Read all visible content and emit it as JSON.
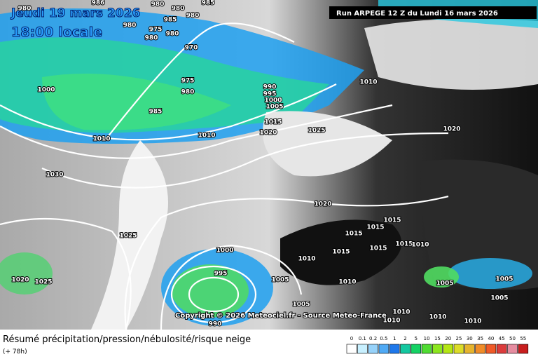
{
  "header": {
    "date": "Jeudi 19 mars 2026",
    "time": "18:00 locale",
    "run": "Run ARPEGE 12 Z du Lundi 16 mars 2026",
    "copyright": "Copyright © 2026 Meteociel.fr - Source Meteo-France"
  },
  "footer": {
    "title": "Résumé précipitation/pression/nébulosité/risque neige",
    "lead": "(+ 78h)"
  },
  "isobar_labels": [
    "980",
    "986",
    "980",
    "980",
    "985",
    "980",
    "985",
    "980",
    "975",
    "980",
    "980",
    "970",
    "1000",
    "975",
    "980",
    "985",
    "990",
    "995",
    "1000",
    "1005",
    "1010",
    "1010",
    "1015",
    "1020",
    "1025",
    "1010",
    "1020",
    "1030",
    "1020",
    "1025",
    "1015",
    "1015",
    "1015",
    "1015",
    "1015",
    "1015",
    "1010",
    "1010",
    "1000",
    "995",
    "1005",
    "1020",
    "1025",
    "1010",
    "1005",
    "1005",
    "1005",
    "1010",
    "1010",
    "990",
    "1010",
    "1010",
    "1005"
  ],
  "legend": [
    {
      "label": "0",
      "color": "#ffffff"
    },
    {
      "label": "0.1",
      "color": "#c8f0ff"
    },
    {
      "label": "0.2",
      "color": "#96d2fa"
    },
    {
      "label": "0.5",
      "color": "#50aaf5"
    },
    {
      "label": "1",
      "color": "#1e78eb"
    },
    {
      "label": "2",
      "color": "#14c8a0"
    },
    {
      "label": "5",
      "color": "#14d264"
    },
    {
      "label": "10",
      "color": "#50dc32"
    },
    {
      "label": "15",
      "color": "#8ce61e"
    },
    {
      "label": "20",
      "color": "#b4e614"
    },
    {
      "label": "25",
      "color": "#dcdc28"
    },
    {
      "label": "30",
      "color": "#e6b42d"
    },
    {
      "label": "35",
      "color": "#f08c28"
    },
    {
      "label": "40",
      "color": "#f05a28"
    },
    {
      "label": "45",
      "color": "#dc3c3c"
    },
    {
      "label": "50",
      "color": "#e68ca0"
    },
    {
      "label": "55",
      "color": "#c81e1e"
    }
  ]
}
